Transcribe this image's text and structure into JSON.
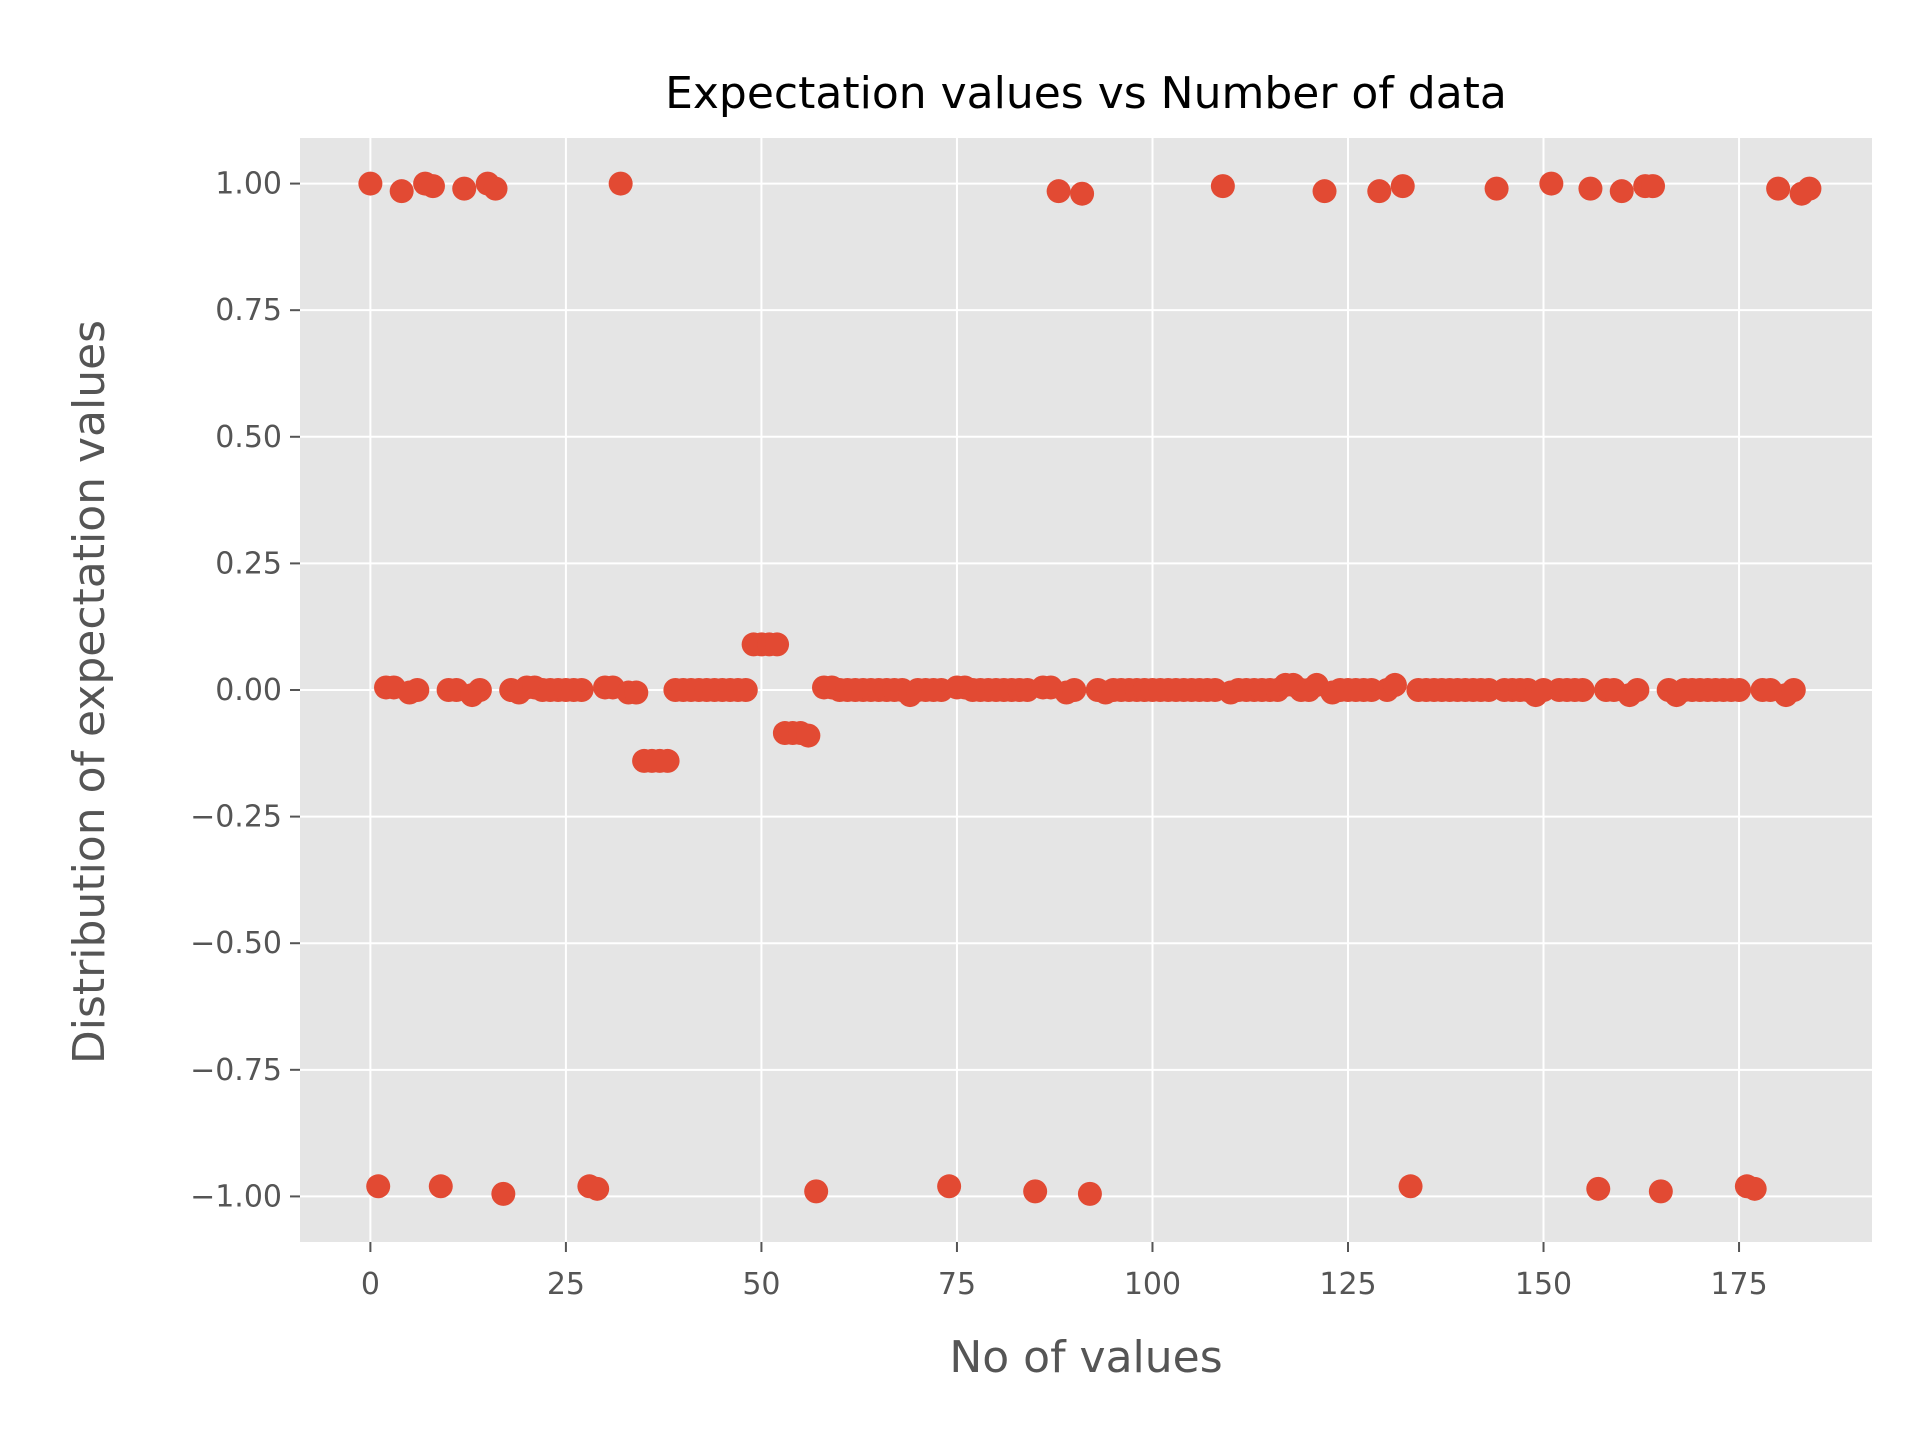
{
  "chart_data": {
    "type": "scatter",
    "title": "Expectation values vs Number of data",
    "xlabel": "No of values",
    "ylabel": "Distribution of expectation values",
    "xlim": [
      -9,
      192
    ],
    "ylim": [
      -1.09,
      1.09
    ],
    "xticks": [
      {
        "value": 0,
        "label": "0"
      },
      {
        "value": 25,
        "label": "25"
      },
      {
        "value": 50,
        "label": "50"
      },
      {
        "value": 75,
        "label": "75"
      },
      {
        "value": 100,
        "label": "100"
      },
      {
        "value": 125,
        "label": "125"
      },
      {
        "value": 150,
        "label": "150"
      },
      {
        "value": 175,
        "label": "175"
      }
    ],
    "yticks": [
      {
        "value": 1.0,
        "label": "1.00"
      },
      {
        "value": 0.75,
        "label": "0.75"
      },
      {
        "value": 0.5,
        "label": "0.50"
      },
      {
        "value": 0.25,
        "label": "0.25"
      },
      {
        "value": 0.0,
        "label": "0.00"
      },
      {
        "value": -0.25,
        "label": "−0.25"
      },
      {
        "value": -0.5,
        "label": "−0.50"
      },
      {
        "value": -0.75,
        "label": "−0.75"
      },
      {
        "value": -1.0,
        "label": "−1.00"
      }
    ],
    "grid": true,
    "colors": {
      "marker": "#e24a33",
      "background": "#e5e5e5",
      "grid": "#ffffff",
      "tick": "#555555"
    },
    "series": [
      {
        "values": [
          [
            0,
            1.0
          ],
          [
            1,
            -0.98
          ],
          [
            2,
            0.005
          ],
          [
            3,
            0.005
          ],
          [
            4,
            0.985
          ],
          [
            5,
            -0.005
          ],
          [
            6,
            0.0
          ],
          [
            7,
            1.0
          ],
          [
            8,
            0.995
          ],
          [
            9,
            -0.98
          ],
          [
            10,
            0.0
          ],
          [
            11,
            0.0
          ],
          [
            12,
            0.99
          ],
          [
            13,
            -0.01
          ],
          [
            14,
            0.0
          ],
          [
            15,
            1.0
          ],
          [
            16,
            0.99
          ],
          [
            17,
            -0.995
          ],
          [
            18,
            0.0
          ],
          [
            19,
            -0.005
          ],
          [
            20,
            0.005
          ],
          [
            21,
            0.005
          ],
          [
            22,
            0.0
          ],
          [
            23,
            0.0
          ],
          [
            24,
            0.0
          ],
          [
            25,
            0.0
          ],
          [
            26,
            0.0
          ],
          [
            27,
            0.0
          ],
          [
            28,
            -0.98
          ],
          [
            29,
            -0.985
          ],
          [
            30,
            0.005
          ],
          [
            31,
            0.005
          ],
          [
            32,
            1.0
          ],
          [
            33,
            -0.005
          ],
          [
            34,
            -0.005
          ],
          [
            35,
            -0.14
          ],
          [
            36,
            -0.14
          ],
          [
            37,
            -0.14
          ],
          [
            38,
            -0.14
          ],
          [
            39,
            0.0
          ],
          [
            40,
            0.0
          ],
          [
            41,
            0.0
          ],
          [
            42,
            0.0
          ],
          [
            43,
            0.0
          ],
          [
            44,
            0.0
          ],
          [
            45,
            0.0
          ],
          [
            46,
            0.0
          ],
          [
            47,
            0.0
          ],
          [
            48,
            0.0
          ],
          [
            49,
            0.09
          ],
          [
            50,
            0.09
          ],
          [
            51,
            0.09
          ],
          [
            52,
            0.09
          ],
          [
            53,
            -0.085
          ],
          [
            54,
            -0.085
          ],
          [
            55,
            -0.085
          ],
          [
            56,
            -0.09
          ],
          [
            57,
            -0.99
          ],
          [
            58,
            0.005
          ],
          [
            59,
            0.005
          ],
          [
            60,
            0.0
          ],
          [
            61,
            0.0
          ],
          [
            62,
            0.0
          ],
          [
            63,
            0.0
          ],
          [
            64,
            0.0
          ],
          [
            65,
            0.0
          ],
          [
            66,
            0.0
          ],
          [
            67,
            0.0
          ],
          [
            68,
            0.0
          ],
          [
            69,
            -0.01
          ],
          [
            70,
            0.0
          ],
          [
            71,
            0.0
          ],
          [
            72,
            0.0
          ],
          [
            73,
            0.0
          ],
          [
            74,
            -0.98
          ],
          [
            75,
            0.005
          ],
          [
            76,
            0.005
          ],
          [
            77,
            0.0
          ],
          [
            78,
            0.0
          ],
          [
            79,
            0.0
          ],
          [
            80,
            0.0
          ],
          [
            81,
            0.0
          ],
          [
            82,
            0.0
          ],
          [
            83,
            0.0
          ],
          [
            84,
            0.0
          ],
          [
            85,
            -0.99
          ],
          [
            86,
            0.005
          ],
          [
            87,
            0.005
          ],
          [
            88,
            0.985
          ],
          [
            89,
            -0.005
          ],
          [
            90,
            0.0
          ],
          [
            91,
            0.98
          ],
          [
            92,
            -0.995
          ],
          [
            93,
            0.0
          ],
          [
            94,
            -0.005
          ],
          [
            95,
            0.0
          ],
          [
            96,
            0.0
          ],
          [
            97,
            0.0
          ],
          [
            98,
            0.0
          ],
          [
            99,
            0.0
          ],
          [
            100,
            0.0
          ],
          [
            101,
            0.0
          ],
          [
            102,
            0.0
          ],
          [
            103,
            0.0
          ],
          [
            104,
            0.0
          ],
          [
            105,
            0.0
          ],
          [
            106,
            0.0
          ],
          [
            107,
            0.0
          ],
          [
            108,
            0.0
          ],
          [
            109,
            0.995
          ],
          [
            110,
            -0.005
          ],
          [
            111,
            0.0
          ],
          [
            112,
            0.0
          ],
          [
            113,
            0.0
          ],
          [
            114,
            0.0
          ],
          [
            115,
            0.0
          ],
          [
            116,
            0.0
          ],
          [
            117,
            0.01
          ],
          [
            118,
            0.01
          ],
          [
            119,
            0.0
          ],
          [
            120,
            0.0
          ],
          [
            121,
            0.01
          ],
          [
            122,
            0.985
          ],
          [
            123,
            -0.005
          ],
          [
            124,
            0.0
          ],
          [
            125,
            0.0
          ],
          [
            126,
            0.0
          ],
          [
            127,
            0.0
          ],
          [
            128,
            0.0
          ],
          [
            129,
            0.985
          ],
          [
            130,
            0.0
          ],
          [
            131,
            0.01
          ],
          [
            132,
            0.995
          ],
          [
            133,
            -0.98
          ],
          [
            134,
            0.0
          ],
          [
            135,
            0.0
          ],
          [
            136,
            0.0
          ],
          [
            137,
            0.0
          ],
          [
            138,
            0.0
          ],
          [
            139,
            0.0
          ],
          [
            140,
            0.0
          ],
          [
            141,
            0.0
          ],
          [
            142,
            0.0
          ],
          [
            143,
            0.0
          ],
          [
            144,
            0.99
          ],
          [
            145,
            0.0
          ],
          [
            146,
            0.0
          ],
          [
            147,
            0.0
          ],
          [
            148,
            0.0
          ],
          [
            149,
            -0.01
          ],
          [
            150,
            0.0
          ],
          [
            151,
            1.0
          ],
          [
            152,
            0.0
          ],
          [
            153,
            0.0
          ],
          [
            154,
            0.0
          ],
          [
            155,
            0.0
          ],
          [
            156,
            0.99
          ],
          [
            157,
            -0.985
          ],
          [
            158,
            0.0
          ],
          [
            159,
            0.0
          ],
          [
            160,
            0.985
          ],
          [
            161,
            -0.01
          ],
          [
            162,
            0.0
          ],
          [
            163,
            0.995
          ],
          [
            164,
            0.995
          ],
          [
            165,
            -0.99
          ],
          [
            166,
            0.0
          ],
          [
            167,
            -0.01
          ],
          [
            168,
            0.0
          ],
          [
            169,
            0.0
          ],
          [
            170,
            0.0
          ],
          [
            171,
            0.0
          ],
          [
            172,
            0.0
          ],
          [
            173,
            0.0
          ],
          [
            174,
            0.0
          ],
          [
            175,
            0.0
          ],
          [
            176,
            -0.98
          ],
          [
            177,
            -0.985
          ],
          [
            178,
            0.0
          ],
          [
            179,
            0.0
          ],
          [
            180,
            0.99
          ],
          [
            181,
            -0.01
          ],
          [
            182,
            0.0
          ],
          [
            183,
            0.98
          ],
          [
            184,
            0.99
          ]
        ]
      }
    ]
  }
}
